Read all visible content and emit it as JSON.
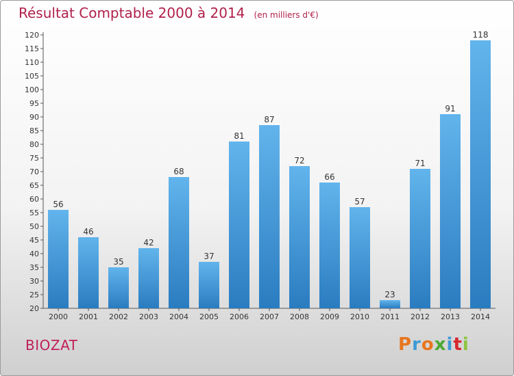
{
  "title": "Résultat Comptable 2000 à 2014",
  "subtitle": "(en milliers d'€)",
  "commune": "BIOZAT",
  "logo": {
    "text": "Proxiti",
    "letters": [
      "P",
      "r",
      "o",
      "x",
      "i",
      "t",
      "i"
    ],
    "colors": [
      "#e8761e",
      "#3e9ad6",
      "#e8761e",
      "#4aa832",
      "#3e9ad6",
      "#d8262e",
      "#8bc53f"
    ]
  },
  "colors": {
    "title": "#b0204a",
    "bar_top": "#62b4ec",
    "bar_bottom": "#2a7cc0"
  },
  "chart_data": {
    "type": "bar",
    "categories": [
      "2000",
      "2001",
      "2002",
      "2003",
      "2004",
      "2005",
      "2006",
      "2007",
      "2008",
      "2009",
      "2010",
      "2011",
      "2012",
      "2013",
      "2014"
    ],
    "values": [
      56,
      46,
      35,
      42,
      68,
      37,
      81,
      87,
      72,
      66,
      57,
      23,
      71,
      91,
      118
    ],
    "ylim": [
      20,
      120
    ],
    "ytick_step": 5,
    "grid": false,
    "data_labels": true
  }
}
